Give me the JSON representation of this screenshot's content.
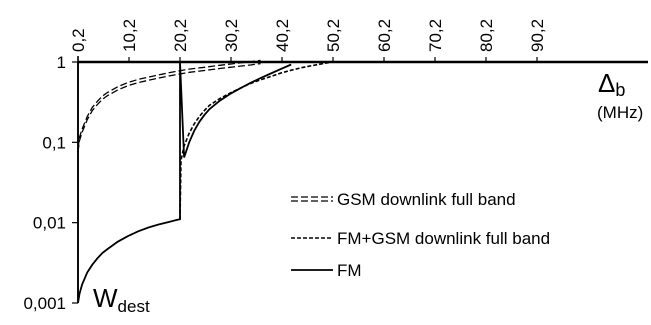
{
  "chart_data": {
    "type": "line",
    "x_axis": {
      "position": "top",
      "range": [
        0.2,
        100.2
      ],
      "ticks": [
        "0,2",
        "10,2",
        "20,2",
        "30,2",
        "40,2",
        "50,2",
        "60,2",
        "70,2",
        "80,2",
        "90,2"
      ],
      "tick_values": [
        0.2,
        10.2,
        20.2,
        30.2,
        40.2,
        50.2,
        60.2,
        70.2,
        80.2,
        90.2
      ],
      "label_main": "Δ",
      "label_sub": "b",
      "unit": "(MHz)"
    },
    "y_axis": {
      "scale": "log",
      "range": [
        0.001,
        1
      ],
      "ticks": [
        "1",
        "0,1",
        "0,01",
        "0,001"
      ],
      "tick_values": [
        1,
        0.1,
        0.01,
        0.001
      ],
      "label_main": "W",
      "label_sub": "dest"
    },
    "series": [
      {
        "name": "GSM downlink full band",
        "style": "dashed-double",
        "x": [
          0.2,
          0.5,
          1,
          2,
          3,
          4,
          5,
          6,
          8,
          10,
          12,
          14,
          16,
          18,
          20,
          22,
          25,
          28,
          30,
          32,
          34,
          35,
          36
        ],
        "y": [
          0.08,
          0.11,
          0.14,
          0.2,
          0.26,
          0.31,
          0.36,
          0.4,
          0.47,
          0.53,
          0.58,
          0.62,
          0.66,
          0.7,
          0.74,
          0.78,
          0.82,
          0.87,
          0.9,
          0.93,
          0.96,
          0.98,
          1
        ]
      },
      {
        "name": "FM+GSM downlink full band",
        "style": "dashed",
        "x": [
          20.2,
          20.4,
          21,
          22,
          23,
          24,
          25,
          26,
          28,
          30,
          32,
          34,
          36,
          38,
          40,
          42,
          44,
          46,
          48,
          50
        ],
        "y": [
          0.011,
          0.06,
          0.09,
          0.13,
          0.17,
          0.21,
          0.25,
          0.29,
          0.35,
          0.41,
          0.47,
          0.54,
          0.6,
          0.66,
          0.73,
          0.79,
          0.85,
          0.9,
          0.95,
          1
        ]
      },
      {
        "name": "FM",
        "style": "solid",
        "x": [
          0.2,
          0.2,
          0.5,
          1,
          2,
          3,
          4,
          5,
          6,
          8,
          10,
          12,
          14,
          16,
          18,
          19.5,
          20.2,
          20.2,
          21,
          22,
          23,
          24,
          25,
          26,
          28,
          30,
          32,
          34,
          36,
          38,
          40,
          42
        ],
        "y": [
          1,
          0.001,
          0.0013,
          0.0017,
          0.0024,
          0.003,
          0.0036,
          0.0042,
          0.0047,
          0.0058,
          0.0068,
          0.0078,
          0.0087,
          0.0095,
          0.0102,
          0.0108,
          0.011,
          1,
          0.065,
          0.1,
          0.14,
          0.18,
          0.22,
          0.26,
          0.33,
          0.4,
          0.47,
          0.55,
          0.63,
          0.72,
          0.82,
          0.93
        ]
      }
    ],
    "legend": {
      "placement": "right",
      "entries": [
        "GSM downlink full band",
        "FM+GSM downlink full band",
        "FM"
      ]
    }
  }
}
